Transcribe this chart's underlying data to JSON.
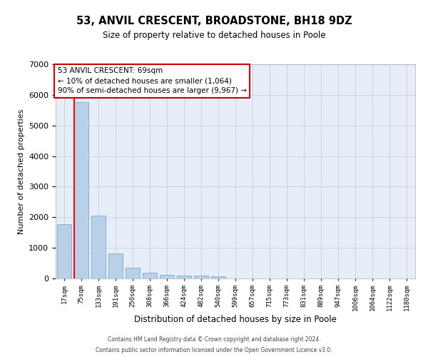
{
  "title": "53, ANVIL CRESCENT, BROADSTONE, BH18 9DZ",
  "subtitle": "Size of property relative to detached houses in Poole",
  "xlabel": "Distribution of detached houses by size in Poole",
  "ylabel": "Number of detached properties",
  "bar_color": "#b8d0e8",
  "bar_edge_color": "#6a9fc8",
  "background_color": "#e8eef8",
  "grid_color": "#c0c8d8",
  "categories": [
    "17sqm",
    "75sqm",
    "133sqm",
    "191sqm",
    "250sqm",
    "308sqm",
    "366sqm",
    "424sqm",
    "482sqm",
    "540sqm",
    "599sqm",
    "657sqm",
    "715sqm",
    "773sqm",
    "831sqm",
    "889sqm",
    "947sqm",
    "1006sqm",
    "1064sqm",
    "1122sqm",
    "1180sqm"
  ],
  "values": [
    1780,
    5760,
    2050,
    820,
    340,
    190,
    115,
    105,
    85,
    65,
    0,
    0,
    0,
    0,
    0,
    0,
    0,
    0,
    0,
    0,
    0
  ],
  "ylim": [
    0,
    7000
  ],
  "yticks": [
    0,
    1000,
    2000,
    3000,
    4000,
    5000,
    6000,
    7000
  ],
  "red_line_x": 0.575,
  "annotation_text": "53 ANVIL CRESCENT: 69sqm\n← 10% of detached houses are smaller (1,064)\n90% of semi-detached houses are larger (9,967) →",
  "annotation_box_color": "#cc0000",
  "footer_line1": "Contains HM Land Registry data © Crown copyright and database right 2024.",
  "footer_line2": "Contains public sector information licensed under the Open Government Licence v3.0."
}
